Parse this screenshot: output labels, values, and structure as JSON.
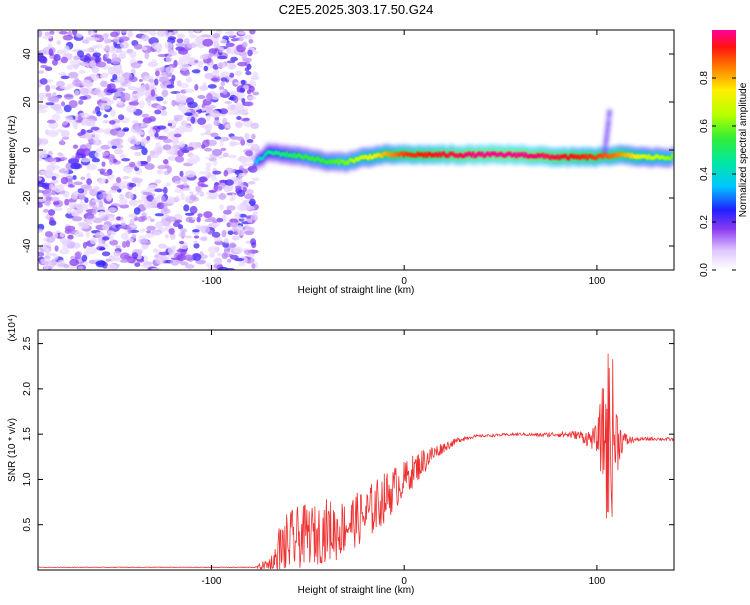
{
  "title": "C2E5.2025.303.17.50.G24",
  "chart_data": [
    {
      "type": "heatmap",
      "xlabel": "Height of straight line (km)",
      "ylabel": "Frequency (Hz)",
      "xlim": [
        -190,
        140
      ],
      "ylim": [
        -50,
        50
      ],
      "xticks": [
        -100,
        0,
        100
      ],
      "yticks": [
        -40,
        -20,
        0,
        20,
        40
      ],
      "grid": false,
      "colorbar": {
        "label": "Normalized spectral amplitude",
        "range": [
          0.0,
          1.0
        ],
        "ticks": [
          0.0,
          0.2,
          0.4,
          0.6,
          0.8
        ],
        "tick_labels": [
          "0.0",
          "0.2",
          "0.4",
          "0.6",
          "0.8"
        ]
      },
      "noise_region": {
        "x": [
          -190,
          -77
        ],
        "y": [
          -50,
          50
        ],
        "amplitude_range": [
          0.05,
          0.25
        ]
      },
      "ridge": [
        {
          "x": -77,
          "frequency": -5,
          "amplitude": 0.35
        },
        {
          "x": -70,
          "frequency": -1,
          "amplitude": 0.45
        },
        {
          "x": -60,
          "frequency": -2,
          "amplitude": 0.5
        },
        {
          "x": -50,
          "frequency": -3,
          "amplitude": 0.55
        },
        {
          "x": -40,
          "frequency": -5,
          "amplitude": 0.55
        },
        {
          "x": -30,
          "frequency": -5,
          "amplitude": 0.6
        },
        {
          "x": -20,
          "frequency": -3,
          "amplitude": 0.7
        },
        {
          "x": -10,
          "frequency": -2,
          "amplitude": 0.8
        },
        {
          "x": 0,
          "frequency": -2,
          "amplitude": 0.9
        },
        {
          "x": 20,
          "frequency": -2,
          "amplitude": 0.95
        },
        {
          "x": 40,
          "frequency": -2,
          "amplitude": 1.0
        },
        {
          "x": 60,
          "frequency": -2,
          "amplitude": 1.0
        },
        {
          "x": 80,
          "frequency": -3,
          "amplitude": 0.95
        },
        {
          "x": 100,
          "frequency": -3,
          "amplitude": 0.9
        },
        {
          "x": 110,
          "frequency": -2,
          "amplitude": 0.85
        },
        {
          "x": 125,
          "frequency": -3,
          "amplitude": 0.7
        },
        {
          "x": 140,
          "frequency": -3,
          "amplitude": 0.6
        }
      ]
    },
    {
      "type": "line",
      "xlabel": "Height of straight line (km)",
      "ylabel": "SNR (10 * v/v)",
      "y_scale_label": "(x10⁴)",
      "xlim": [
        -190,
        140
      ],
      "ylim": [
        0,
        2.65
      ],
      "xticks": [
        -100,
        0,
        100
      ],
      "yticks": [
        0.5,
        1.0,
        1.5,
        2.0,
        2.5
      ],
      "ytick_labels": [
        "0.5",
        "1.0",
        "1.5",
        "2.0",
        "2.5"
      ],
      "grid": false,
      "series": [
        {
          "color": "#ee3030",
          "x": [
            -190,
            -100,
            -77,
            -70,
            -65,
            -60,
            -55,
            -50,
            -45,
            -40,
            -35,
            -30,
            -25,
            -20,
            -15,
            -10,
            -5,
            0,
            5,
            10,
            15,
            20,
            25,
            30,
            35,
            40,
            50,
            60,
            70,
            80,
            90,
            96,
            100,
            103,
            106,
            108,
            110,
            112,
            115,
            120,
            130,
            140
          ],
          "mean": [
            0.03,
            0.03,
            0.03,
            0.05,
            0.15,
            0.3,
            0.35,
            0.4,
            0.38,
            0.45,
            0.42,
            0.5,
            0.55,
            0.6,
            0.7,
            0.8,
            0.9,
            1.0,
            1.1,
            1.2,
            1.28,
            1.35,
            1.4,
            1.45,
            1.47,
            1.48,
            1.49,
            1.5,
            1.49,
            1.5,
            1.49,
            1.45,
            1.45,
            1.5,
            1.4,
            1.5,
            1.45,
            1.44,
            1.43,
            1.44,
            1.45,
            1.44
          ],
          "amplitude": [
            0.003,
            0.003,
            0.005,
            0.1,
            0.35,
            0.35,
            0.35,
            0.33,
            0.33,
            0.35,
            0.33,
            0.3,
            0.3,
            0.3,
            0.3,
            0.28,
            0.25,
            0.2,
            0.18,
            0.15,
            0.1,
            0.06,
            0.04,
            0.03,
            0.02,
            0.015,
            0.015,
            0.015,
            0.02,
            0.03,
            0.05,
            0.1,
            0.15,
            0.55,
            1.2,
            0.9,
            0.5,
            0.2,
            0.08,
            0.02,
            0.02,
            0.02
          ]
        }
      ]
    }
  ]
}
